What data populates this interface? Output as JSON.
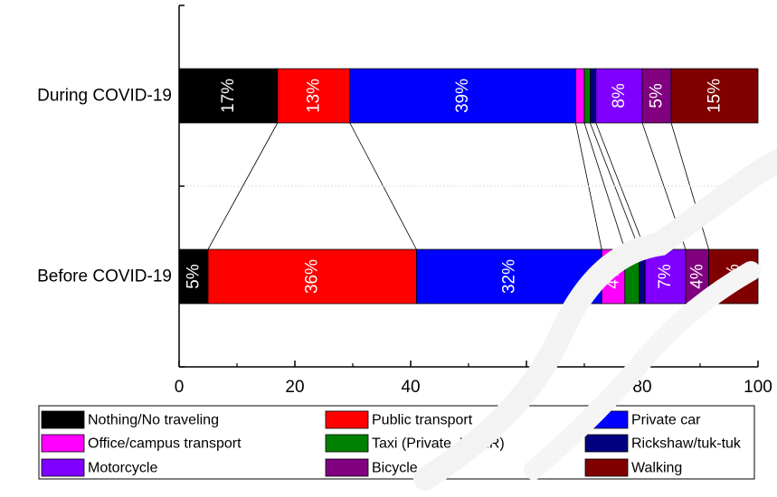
{
  "chart_data": {
    "type": "bar",
    "orientation": "horizontal",
    "stacked": true,
    "title": "",
    "xlabel": "",
    "ylabel": "",
    "xlim": [
      0,
      100
    ],
    "x_ticks": [
      0,
      20,
      40,
      60,
      80,
      100
    ],
    "grid": false,
    "legend_position": "bottom",
    "categories": [
      "During COVID-19",
      "Before COVID-19"
    ],
    "series": [
      {
        "name": "Nothing/No traveling",
        "color": "#000000",
        "text_color": "#ffffff",
        "values": [
          17,
          5
        ],
        "labels": [
          "17%",
          "5%"
        ]
      },
      {
        "name": "Public transport",
        "color": "#ff0000",
        "text_color": "#ffffff",
        "values": [
          12.5,
          36
        ],
        "labels": [
          "13%",
          "36%"
        ]
      },
      {
        "name": "Private car",
        "color": "#0000ff",
        "text_color": "#ffffff",
        "values": [
          39,
          32
        ],
        "labels": [
          "39%",
          "32%"
        ]
      },
      {
        "name": "Office/campus transport",
        "color": "#ff00ff",
        "text_color": "#ffffff",
        "values": [
          1.5,
          4
        ],
        "labels": [
          "",
          "4%"
        ]
      },
      {
        "name": "Taxi (Private, UBER)",
        "color": "#008000",
        "text_color": "#ffffff",
        "values": [
          1,
          2.5
        ],
        "labels": [
          "",
          ""
        ]
      },
      {
        "name": "Rickshaw/tuk-tuk",
        "color": "#000080",
        "text_color": "#ffffff",
        "values": [
          1,
          1
        ],
        "labels": [
          "",
          ""
        ]
      },
      {
        "name": "Motorcycle",
        "color": "#8000ff",
        "text_color": "#ffffff",
        "values": [
          8,
          7
        ],
        "labels": [
          "8%",
          "7%"
        ]
      },
      {
        "name": "Bicycle",
        "color": "#800080",
        "text_color": "#ffffff",
        "values": [
          5,
          4
        ],
        "labels": [
          "5%",
          "4%"
        ]
      },
      {
        "name": "Walking",
        "color": "#800000",
        "text_color": "#ffffff",
        "values": [
          15,
          8.5
        ],
        "labels": [
          "15%",
          "8%"
        ]
      }
    ]
  }
}
